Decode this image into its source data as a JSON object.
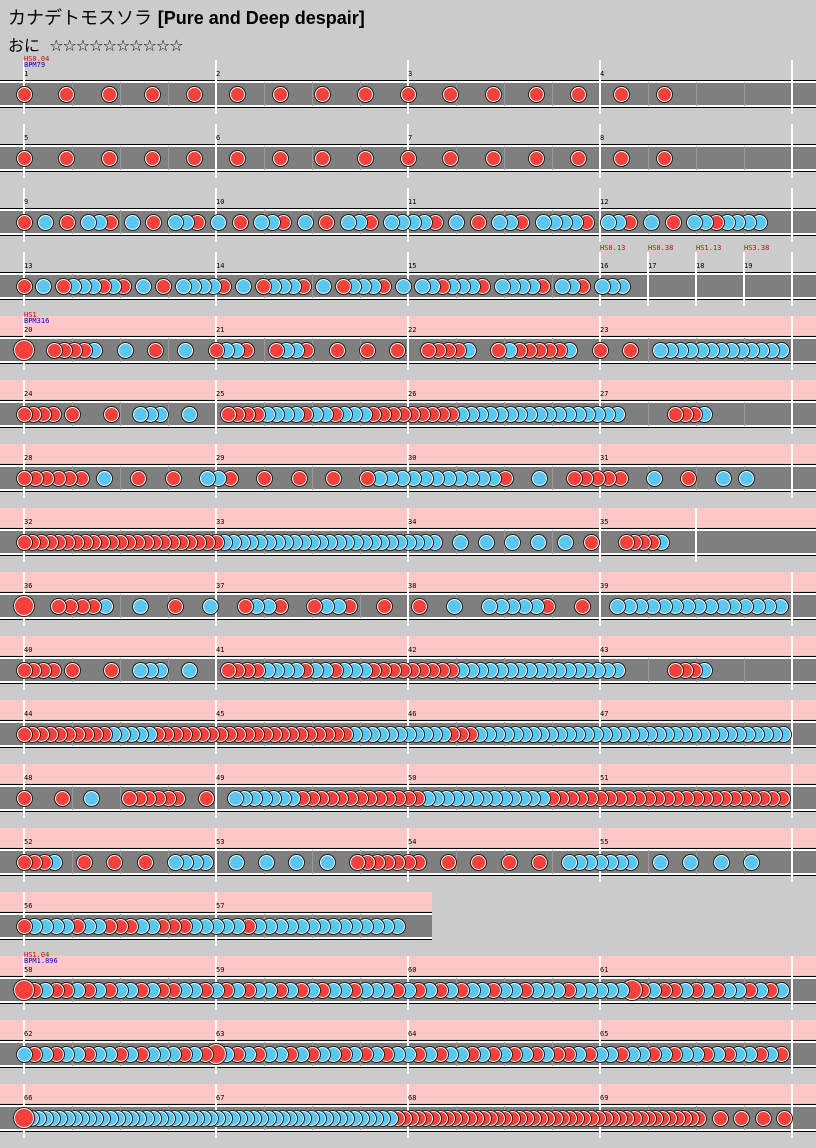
{
  "header": {
    "title_song": "カナデトモスソラ",
    "title_sub": "[Pure and Deep despair]",
    "difficulty": "おに",
    "stars": "☆☆☆☆☆☆☆☆☆☆"
  },
  "colors": {
    "background": "#cbcbcb",
    "lane": "#7f7f7f",
    "gogo": "#ffc6c6",
    "don": "#f5413b",
    "ka": "#58c8f2",
    "hs_text": "#dd0000",
    "bpm_text": "#0000cc"
  },
  "rows": [
    {
      "measures": [
        {
          "n": "1",
          "len": 4
        },
        {
          "n": "2",
          "len": 4
        },
        {
          "n": "3",
          "len": 4
        },
        {
          "n": "4",
          "len": 4
        }
      ],
      "gogo": [],
      "events": [
        {
          "pos": 0,
          "hs": "HS0.04",
          "bpm": "BPM79"
        }
      ],
      "notes": "d...d...d...d...d...d...d...d...d...d...d...d...d...d...d...d..........."
    },
    {
      "measures": [
        {
          "n": "5",
          "len": 4
        },
        {
          "n": "6",
          "len": 4
        },
        {
          "n": "7",
          "len": 4
        },
        {
          "n": "8",
          "len": 4
        }
      ],
      "gogo": [],
      "events": [],
      "notes": "d...d...d...d...d...d...d...d...d...d...d...d...d...d...d...d..........."
    },
    {
      "measures": [
        {
          "n": "9",
          "len": 4
        },
        {
          "n": "10",
          "len": 4
        },
        {
          "n": "11",
          "len": 4
        },
        {
          "n": "12",
          "len": 4
        }
      ],
      "gogo": [],
      "events": [],
      "notes": "d.k.d.kkd.k.d.kkd.k.d.kkd.k.d.kkd.kkkkd.k.d.kkd.kkkkd.kkd.k.d.kkdkkkk.."
    },
    {
      "measures": [
        {
          "n": "13",
          "len": 4
        },
        {
          "n": "14",
          "len": 4
        },
        {
          "n": "15",
          "len": 4
        },
        {
          "n": "16",
          "len": 1
        },
        {
          "n": "17",
          "len": 1
        },
        {
          "n": "18",
          "len": 1
        },
        {
          "n": "19",
          "len": 1
        }
      ],
      "gogo": [],
      "events": [
        {
          "pos": 12,
          "hs": "HS0.13"
        },
        {
          "pos": 13,
          "hs": "HS0.38"
        },
        {
          "pos": 14,
          "hs": "HS1.13"
        },
        {
          "pos": 15,
          "hs": "HS3.38"
        }
      ],
      "notes": "d.k.dkkkdkd.k.d.kkkkd.k.dkkkd.k.dkkkd.k.kkdkkkd.kkkkd.kkd.kkk................"
    },
    {
      "measures": [
        {
          "n": "20",
          "len": 4
        },
        {
          "n": "21",
          "len": 4
        },
        {
          "n": "22",
          "len": 4
        },
        {
          "n": "23",
          "len": 4
        }
      ],
      "gogo": [
        [
          0,
          16
        ]
      ],
      "events": [
        {
          "pos": 0,
          "hs": "HS1",
          "bpm": "BPM316"
        }
      ],
      "notes": "D..ddddk..k..d..k..dkkd..dkkd..d..d..d..ddddk..dkdddddk..d..d..kkkkkkkkkkkkk"
    },
    {
      "measures": [
        {
          "n": "24",
          "len": 4
        },
        {
          "n": "25",
          "len": 4
        },
        {
          "n": "26",
          "len": 4
        },
        {
          "n": "27",
          "len": 4
        }
      ],
      "gogo": [
        [
          0,
          16
        ]
      ],
      "events": [],
      "notes": "dddd.d...d..kkk..k...ddddkkkkdkkdkkkdddddddddkkkkkkkkkkkkkkkkk.....dddk........"
    },
    {
      "measures": [
        {
          "n": "28",
          "len": 4
        },
        {
          "n": "29",
          "len": 4
        },
        {
          "n": "30",
          "len": 4
        },
        {
          "n": "31",
          "len": 4
        }
      ],
      "gogo": [
        [
          0,
          16
        ]
      ],
      "events": [],
      "notes": "dddddd.k..d..d..kkd..d..d..d..dkkkkkkkkkkkd..k..ddddd..k..d..k.k..."
    },
    {
      "measures": [
        {
          "n": "32",
          "len": 4
        },
        {
          "n": "33",
          "len": 4
        },
        {
          "n": "34",
          "len": 4
        },
        {
          "n": "35",
          "len": 2
        }
      ],
      "gogo": [
        [
          0,
          14
        ]
      ],
      "events": [],
      "notes": "dddddddddddddddddddddddkkkkkkkkkkkkkkkkkkkkkkkkk..k..k..k..k..k..d...ddddk..."
    },
    {
      "measures": [
        {
          "n": "36",
          "len": 4
        },
        {
          "n": "37",
          "len": 4
        },
        {
          "n": "38",
          "len": 4
        },
        {
          "n": "39",
          "len": 4
        }
      ],
      "gogo": [
        [
          0,
          16
        ]
      ],
      "events": [],
      "notes": "D..ddddk..k..d..k..dkkd..dkkd..d..d..k..kkkkkd..d..kkkkkkkkkkkkkkk"
    },
    {
      "measures": [
        {
          "n": "40",
          "len": 4
        },
        {
          "n": "41",
          "len": 4
        },
        {
          "n": "42",
          "len": 4
        },
        {
          "n": "43",
          "len": 4
        }
      ],
      "gogo": [
        [
          0,
          16
        ]
      ],
      "events": [],
      "notes": "dddd.d...d..kkk..k...ddddkkkkdkkdkkkdddddddddkkkkkkkkkkkkkkkkk.....dddk........"
    },
    {
      "measures": [
        {
          "n": "44",
          "len": 4
        },
        {
          "n": "45",
          "len": 4
        },
        {
          "n": "46",
          "len": 4
        },
        {
          "n": "47",
          "len": 4
        }
      ],
      "gogo": [
        [
          0,
          16
        ]
      ],
      "events": [],
      "notes": "ddddddddddkkkkkddddddddddddddddddddddkkkkkkkkkkkdddkkkkkkkkkkkkkkkkkkkkkkkkkkkkkkkkkkk"
    },
    {
      "measures": [
        {
          "n": "48",
          "len": 4
        },
        {
          "n": "49",
          "len": 4
        },
        {
          "n": "50",
          "len": 4
        },
        {
          "n": "51",
          "len": 4
        }
      ],
      "gogo": [
        [
          0,
          16
        ]
      ],
      "events": [],
      "notes": "d...d..k...dddddd..d..kkkkkkkdddddddddddddkkkkkkkkkkkkkddddddddddddddddddddddddd"
    },
    {
      "measures": [
        {
          "n": "52",
          "len": 4
        },
        {
          "n": "53",
          "len": 4
        },
        {
          "n": "54",
          "len": 4
        },
        {
          "n": "55",
          "len": 4
        }
      ],
      "gogo": [
        [
          0,
          16
        ]
      ],
      "events": [],
      "notes": "dddk..d..d..d..kkkk..k..k..k..k..ddddddd..d..d..d..d..kkkkkkk..k..k..k..k..."
    },
    {
      "measures": [
        {
          "n": "56",
          "len": 4
        },
        {
          "n": "57",
          "len": 4
        }
      ],
      "gogo": [
        [
          0,
          9
        ]
      ],
      "events": [],
      "notes": "dkkkkdkkdddkkdddkkkkkdkkkkkkkkkkkkkk"
    },
    {
      "measures": [
        {
          "n": "58",
          "len": 4
        },
        {
          "n": "59",
          "len": 4
        },
        {
          "n": "60",
          "len": 4
        },
        {
          "n": "61",
          "len": 4
        }
      ],
      "gogo": [
        [
          0,
          16
        ]
      ],
      "events": [
        {
          "pos": 0,
          "hs": "HS1.04",
          "bpm": "BPM1.896"
        }
      ],
      "notes": "DdkddkdkdkkdkddkkdkdkdkkdkdkdkkdkkkdkdkdkdkkdkkdkkkdkkkkkDdkddkdkdkkdkdk"
    },
    {
      "measures": [
        {
          "n": "62",
          "len": 4
        },
        {
          "n": "63",
          "len": 4
        },
        {
          "n": "64",
          "len": 4
        },
        {
          "n": "65",
          "len": 4
        }
      ],
      "gogo": [
        [
          0,
          16
        ]
      ],
      "events": [],
      "notes": "kdkdkkdkkdkdkkkdkdDkdkdkkdkdkkdkdkdkkdkdkkdkdkdkdkddkdkkdkkdkdkkdkdkkdkd"
    },
    {
      "measures": [
        {
          "n": "66",
          "len": 4
        },
        {
          "n": "67",
          "len": 4
        },
        {
          "n": "68",
          "len": 4
        },
        {
          "n": "69",
          "len": 4
        }
      ],
      "gogo": [
        [
          0,
          16
        ]
      ],
      "events": [],
      "notes": "Dkkkkkkkkkkkkkkkkkkkkkkkkkkkkkkkkkkkkkkkkkkkkkkkkkkkddddddddddddddddddddddddddddddddddddddddddd..d..d..d..d"
    }
  ]
}
